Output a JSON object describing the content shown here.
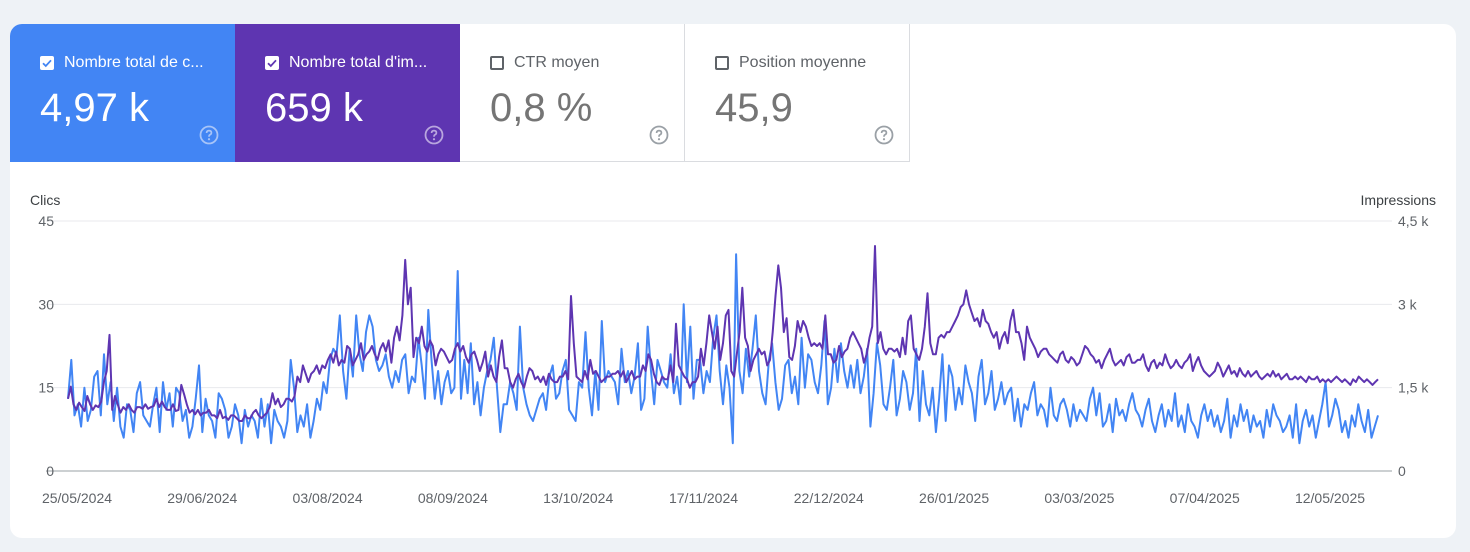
{
  "metrics": [
    {
      "label": "Nombre total de c...",
      "value": "4,97 k",
      "checked": true,
      "color": "#4285f4"
    },
    {
      "label": "Nombre total d'im...",
      "value": "659 k",
      "checked": true,
      "color": "#5e35b1"
    },
    {
      "label": "CTR moyen",
      "value": "0,8 %",
      "checked": false
    },
    {
      "label": "Position moyenne",
      "value": "45,9",
      "checked": false
    }
  ],
  "chart_data": {
    "type": "line",
    "left_axis_title": "Clics",
    "right_axis_title": "Impressions",
    "left_ticks": [
      "45",
      "30",
      "15",
      "0"
    ],
    "right_ticks": [
      "4,5 k",
      "3 k",
      "1,5 k",
      "0"
    ],
    "ylim_left": [
      0,
      45
    ],
    "ylim_right": [
      0,
      4500
    ],
    "x_labels": [
      "25/05/2024",
      "29/06/2024",
      "03/08/2024",
      "08/09/2024",
      "13/10/2024",
      "17/11/2024",
      "22/12/2024",
      "26/01/2025",
      "03/03/2025",
      "07/04/2025",
      "12/05/2025"
    ],
    "x_start": "25/05/2024",
    "x_end": "29/05/2025",
    "series": [
      {
        "name": "Clics",
        "axis": "left",
        "color": "#4285f4",
        "values": [
          13,
          20,
          10,
          12,
          8,
          15,
          9,
          11,
          17,
          18,
          10,
          21,
          12,
          16,
          9,
          15,
          8,
          6,
          12,
          11,
          7,
          14,
          16,
          10,
          9,
          8,
          12,
          15,
          7,
          16,
          11,
          14,
          8,
          15,
          14,
          9,
          11,
          6,
          8,
          13,
          19,
          7,
          13,
          10,
          9,
          6,
          14,
          13,
          11,
          6,
          8,
          12,
          10,
          5,
          11,
          8,
          10,
          9,
          6,
          13,
          8,
          12,
          5,
          11,
          9,
          8,
          6,
          9,
          20,
          15,
          7,
          10,
          8,
          12,
          6,
          9,
          13,
          11,
          16,
          14,
          20,
          22,
          21,
          28,
          18,
          13,
          22,
          17,
          28,
          21,
          18,
          25,
          28,
          26,
          20,
          18,
          19,
          21,
          17,
          15,
          18,
          16,
          20,
          21,
          14,
          17,
          16,
          24,
          19,
          13,
          29,
          20,
          13,
          18,
          12,
          16,
          18,
          14,
          15,
          36,
          13,
          20,
          14,
          23,
          12,
          16,
          10,
          15,
          18,
          20,
          24,
          15,
          7,
          12,
          12,
          16,
          14,
          11,
          26,
          15,
          12,
          10,
          9,
          11,
          13,
          14,
          11,
          17,
          19,
          13,
          14,
          18,
          20,
          11,
          10,
          9,
          16,
          15,
          25,
          15,
          10,
          18,
          11,
          27,
          16,
          18,
          17,
          16,
          12,
          22,
          16,
          18,
          14,
          17,
          23,
          11,
          13,
          26,
          18,
          12,
          20,
          18,
          16,
          15,
          21,
          14,
          17,
          12,
          30,
          16,
          26,
          13,
          20,
          20,
          14,
          18,
          16,
          24,
          28,
          18,
          12,
          19,
          15,
          5,
          39,
          18,
          14,
          22,
          17,
          22,
          28,
          18,
          14,
          12,
          20,
          23,
          16,
          11,
          13,
          19,
          20,
          14,
          17,
          12,
          24,
          15,
          21,
          20,
          16,
          14,
          19,
          27,
          12,
          15,
          22,
          16,
          23,
          18,
          15,
          19,
          15,
          20,
          14,
          17,
          22,
          8,
          14,
          23,
          19,
          12,
          11,
          15,
          20,
          10,
          13,
          18,
          16,
          11,
          14,
          22,
          9,
          18,
          12,
          10,
          15,
          7,
          13,
          21,
          9,
          19,
          17,
          11,
          15,
          12,
          19,
          16,
          14,
          9,
          17,
          20,
          12,
          14,
          18,
          11,
          13,
          16,
          12,
          14,
          15,
          9,
          13,
          8,
          12,
          11,
          14,
          16,
          10,
          12,
          11,
          8,
          15,
          10,
          9,
          12,
          13,
          11,
          8,
          12,
          9,
          11,
          10,
          9,
          13,
          15,
          10,
          14,
          8,
          9,
          12,
          7,
          13,
          10,
          11,
          9,
          12,
          14,
          11,
          10,
          8,
          11,
          13,
          9,
          7,
          10,
          12,
          8,
          11,
          9,
          14,
          8,
          10,
          7,
          12,
          9,
          8,
          6,
          10,
          12,
          9,
          11,
          8,
          10,
          7,
          9,
          13,
          6,
          10,
          8,
          12,
          9,
          11,
          7,
          10,
          8,
          9,
          6,
          11,
          8,
          12,
          10,
          9,
          7,
          8,
          10,
          6,
          12,
          5,
          9,
          11,
          8,
          10,
          6,
          9,
          12,
          16,
          8,
          10,
          13,
          11,
          7,
          9,
          6,
          10,
          8,
          12,
          9,
          7,
          11,
          6,
          8,
          10
        ]
      },
      {
        "name": "Impressions",
        "axis": "right",
        "color": "#5e35b1",
        "values": [
          1300,
          1520,
          1200,
          1100,
          1230,
          1150,
          1080,
          1350,
          1200,
          1100,
          1180,
          1150,
          1250,
          1600,
          1800,
          2450,
          1100,
          1350,
          1200,
          1050,
          1150,
          1100,
          1200,
          1100,
          1050,
          1150,
          1150,
          1120,
          1200,
          1120,
          1150,
          1170,
          1300,
          1150,
          1250,
          1150,
          1100,
          1100,
          1200,
          1080,
          1100,
          1550,
          1380,
          1200,
          1050,
          1100,
          1020,
          1100,
          1000,
          1050,
          1050,
          1100,
          1000,
          1000,
          950,
          1100,
          950,
          980,
          920,
          1000,
          1000,
          950,
          900,
          900,
          1000,
          950,
          950,
          1050,
          1100,
          1000,
          950,
          1000,
          1050,
          1150,
          1400,
          1200,
          1300,
          1150,
          1200,
          1300,
          1300,
          1250,
          1350,
          1700,
          1600,
          1900,
          1750,
          1600,
          1750,
          1800,
          1900,
          1750,
          1900,
          1850,
          2000,
          2100,
          1950,
          2150,
          1900,
          2000,
          1950,
          2250,
          2200,
          1900,
          2000,
          2100,
          2300,
          2000,
          2100,
          2150,
          2250,
          2100,
          2000,
          2200,
          2300,
          2150,
          2350,
          1950,
          2400,
          2600,
          2350,
          2800,
          3800,
          3000,
          3300,
          2050,
          2400,
          2300,
          2600,
          2250,
          2150,
          2350,
          2250,
          1900,
          2100,
          2200,
          2150,
          2050,
          1950,
          2000,
          2200,
          2300,
          2150,
          2250,
          2050,
          1950,
          2100,
          2150,
          2000,
          1800,
          1950,
          2150,
          1700,
          1900,
          1700,
          1600,
          2050,
          2350,
          1850,
          1850,
          1600,
          1500,
          1650,
          1750,
          1600,
          1500,
          1700,
          1850,
          1800,
          1650,
          1700,
          1600,
          1700,
          1550,
          1750,
          1650,
          1600,
          1600,
          1700,
          1700,
          1800,
          1650,
          3150,
          2300,
          1700,
          1650,
          1600,
          1800,
          1650,
          2000,
          1750,
          1800,
          1700,
          1600,
          1650,
          1700,
          1700,
          1750,
          1750,
          1800,
          1700,
          1800,
          1600,
          1700,
          1800,
          1650,
          1700,
          1700,
          1900,
          1800,
          2100,
          2000,
          1750,
          1600,
          1550,
          1700,
          1650,
          1650,
          1900,
          1600,
          2650,
          1900,
          1800,
          1700,
          1650,
          1500,
          1600,
          1600,
          1700,
          2200,
          1900,
          2300,
          2800,
          2500,
          2200,
          2600,
          2000,
          2300,
          2800,
          2900,
          1800,
          1700,
          2100,
          2500,
          3300,
          2400,
          2250,
          1800,
          2000,
          2100,
          2200,
          2100,
          2150,
          1900,
          2000,
          2500,
          3150,
          3700,
          3300,
          2500,
          2750,
          2050,
          2000,
          2250,
          2700,
          2500,
          2700,
          2600,
          2400,
          2250,
          2300,
          2250,
          2300,
          2200,
          2800,
          2100,
          2100,
          1950,
          2000,
          2250,
          2050,
          2150,
          2200,
          2400,
          2500,
          2400,
          2300,
          2200,
          1950,
          2100,
          2400,
          2600,
          4050,
          2300,
          2500,
          2200,
          2100,
          2200,
          2200,
          2150,
          2200,
          2050,
          2400,
          2100,
          2700,
          2800,
          2200,
          2100,
          2000,
          2200,
          2600,
          3200,
          2300,
          2100,
          2100,
          2400,
          2450,
          2400,
          2500,
          2500,
          2600,
          2700,
          2800,
          2950,
          3000,
          3250,
          3000,
          2850,
          2700,
          2750,
          2600,
          2900,
          2700,
          2650,
          2500,
          2400,
          2500,
          2200,
          2400,
          2500,
          2300,
          2700,
          2900,
          2500,
          2500,
          2300,
          2000,
          2600,
          2400,
          2300,
          2200,
          2050,
          2150,
          2200,
          2200,
          2100,
          2050,
          2000,
          1950,
          2100,
          2150,
          2000,
          1950,
          2050,
          2000,
          1900,
          1950,
          2100,
          2250,
          2200,
          2100,
          2050,
          1950,
          2000,
          1850,
          2000,
          2100,
          2200,
          2000,
          1900,
          1950,
          2000,
          1900,
          2050,
          2100,
          1950,
          1950,
          2000,
          2000,
          2100,
          1900,
          1800,
          1950,
          2000,
          1850,
          1950,
          1900,
          2100,
          1950,
          1850,
          1900,
          2000,
          1900,
          1850,
          1950,
          2000,
          2100,
          1800,
          1950,
          2050,
          1900,
          1800,
          1750,
          1700,
          1750,
          1800,
          1950,
          1850,
          1700,
          1800,
          1900,
          1750,
          1800,
          1700,
          1850,
          1750,
          1700,
          1800,
          1700,
          1750,
          1800,
          1700,
          1650,
          1700,
          1750,
          1700,
          1800,
          1700,
          1750,
          1650,
          1700,
          1750,
          1650,
          1650,
          1700,
          1650,
          1700,
          1650,
          1600,
          1700,
          1650,
          1650,
          1700,
          1600,
          1650,
          1600,
          1650,
          1600,
          1650,
          1700,
          1650,
          1600,
          1650,
          1600,
          1550,
          1650,
          1600,
          1700,
          1650,
          1600,
          1650,
          1600,
          1550,
          1600,
          1650
        ]
      }
    ]
  }
}
